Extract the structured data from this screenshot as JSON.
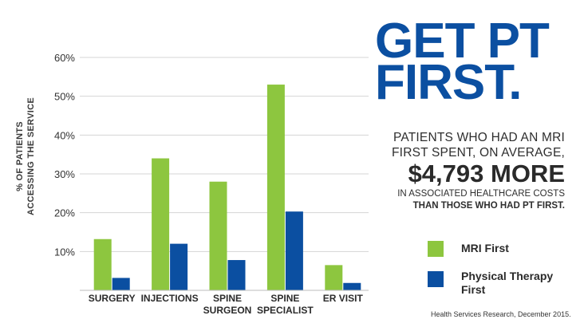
{
  "chart_data": {
    "type": "bar",
    "ylabel_lines": [
      "% OF PATIENTS",
      "ACCESSING THE SERVICE"
    ],
    "ylim": [
      0,
      60
    ],
    "yticks": [
      10,
      20,
      30,
      40,
      50,
      60
    ],
    "ytick_labels": [
      "10%",
      "20%",
      "30%",
      "40%",
      "50%",
      "60%"
    ],
    "grid": true,
    "categories": [
      "SURGERY",
      "INJECTIONS",
      "SPINE SURGEON",
      "SPINE SPECIALIST",
      "ER VISIT"
    ],
    "category_lines": [
      [
        "SURGERY"
      ],
      [
        "INJECTIONS"
      ],
      [
        "SPINE",
        "SURGEON"
      ],
      [
        "SPINE",
        "SPECIALIST"
      ],
      [
        "ER VISIT"
      ]
    ],
    "series": [
      {
        "name": "MRI First",
        "color": "#8dc63f",
        "values": [
          13.2,
          34,
          28,
          53,
          6.5
        ]
      },
      {
        "name": "Physical Therapy First",
        "color": "#0b4fa1",
        "values": [
          3.2,
          12,
          7.8,
          20.3,
          1.9
        ]
      }
    ]
  },
  "headline": {
    "line1": "GET PT",
    "line2": "FIRST."
  },
  "subtext": {
    "line1": "PATIENTS WHO HAD AN MRI",
    "line2": "FIRST SPENT, ON AVERAGE,",
    "amount": "$4,793 MORE",
    "line3": "IN ASSOCIATED HEALTHCARE COSTS",
    "line4": "THAN THOSE WHO HAD PT FIRST."
  },
  "legend": {
    "mri_label": "MRI First",
    "pt_label_line1": "Physical Therapy",
    "pt_label_line2": "First"
  },
  "source": "Health Services Research, December 2015."
}
